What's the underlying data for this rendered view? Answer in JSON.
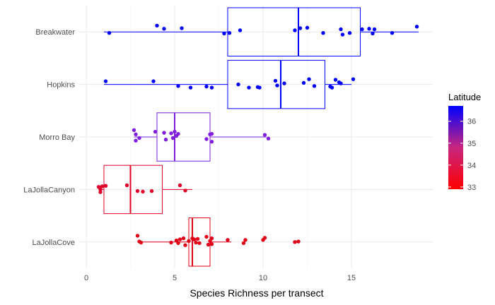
{
  "chart_data": {
    "type": "boxplot",
    "orientation": "horizontal",
    "xlabel": "Species Richness per transect",
    "ylabel": "",
    "xlim": [
      -0.4,
      19.6
    ],
    "x_ticks": [
      0,
      5,
      10,
      15
    ],
    "grid": true,
    "legend": {
      "title": "Latitude",
      "position": "right",
      "type": "colorbar",
      "range": [
        32.9,
        36.7
      ],
      "ticks": [
        33,
        34,
        35,
        36
      ],
      "low_color": "#FF0000",
      "high_color": "#0000FF"
    },
    "categories": [
      "Breakwater",
      "Hopkins",
      "Morro Bay",
      "LaJollaCanyon",
      "LaJollaCove"
    ],
    "series": [
      {
        "category": "Breakwater",
        "latitude": 36.6,
        "color": "#0000FF",
        "whisker_low": 1,
        "q1": 8,
        "median": 12,
        "q3": 15.5,
        "whisker_high": 18.8,
        "points": [
          {
            "x": 1.3,
            "y": -0.02
          },
          {
            "x": 4.0,
            "y": 0.12
          },
          {
            "x": 4.4,
            "y": 0.06
          },
          {
            "x": 5.4,
            "y": 0.07
          },
          {
            "x": 7.8,
            "y": -0.03
          },
          {
            "x": 8.1,
            "y": -0.02
          },
          {
            "x": 8.7,
            "y": 0.03
          },
          {
            "x": 11.8,
            "y": 0.03
          },
          {
            "x": 12.1,
            "y": 0.07
          },
          {
            "x": 12.5,
            "y": 0.08
          },
          {
            "x": 13.4,
            "y": -0.02
          },
          {
            "x": 14.4,
            "y": 0.05
          },
          {
            "x": 14.5,
            "y": -0.05
          },
          {
            "x": 14.9,
            "y": -0.02
          },
          {
            "x": 15.6,
            "y": 0.05
          },
          {
            "x": 16.0,
            "y": 0.06
          },
          {
            "x": 16.2,
            "y": -0.03
          },
          {
            "x": 16.3,
            "y": 0.05
          },
          {
            "x": 17.3,
            "y": -0.02
          },
          {
            "x": 18.7,
            "y": 0.1
          }
        ]
      },
      {
        "category": "Hopkins",
        "latitude": 36.6,
        "color": "#0000FF",
        "whisker_low": 1,
        "q1": 8,
        "median": 11,
        "q3": 13.5,
        "whisker_high": 15,
        "points": [
          {
            "x": 1.1,
            "y": 0.06
          },
          {
            "x": 3.8,
            "y": 0.06
          },
          {
            "x": 5.2,
            "y": -0.03
          },
          {
            "x": 5.9,
            "y": -0.06
          },
          {
            "x": 6.8,
            "y": -0.04
          },
          {
            "x": 7.1,
            "y": -0.06
          },
          {
            "x": 8.6,
            "y": 0.0
          },
          {
            "x": 9.2,
            "y": -0.06
          },
          {
            "x": 9.7,
            "y": -0.05
          },
          {
            "x": 9.8,
            "y": -0.06
          },
          {
            "x": 10.7,
            "y": 0.07
          },
          {
            "x": 10.8,
            "y": -0.02
          },
          {
            "x": 11.2,
            "y": 0.02
          },
          {
            "x": 12.3,
            "y": 0.03
          },
          {
            "x": 12.6,
            "y": 0.1
          },
          {
            "x": 12.9,
            "y": -0.03
          },
          {
            "x": 13.8,
            "y": -0.04
          },
          {
            "x": 13.9,
            "y": -0.06
          },
          {
            "x": 14.1,
            "y": 0.09
          },
          {
            "x": 14.3,
            "y": 0.04
          },
          {
            "x": 14.4,
            "y": 0.02
          },
          {
            "x": 15.1,
            "y": 0.1
          }
        ]
      },
      {
        "category": "Morro Bay",
        "latitude": 35.4,
        "color": "#7F1FDC",
        "whisker_low": 2.7,
        "q1": 4,
        "median": 5,
        "q3": 7,
        "whisker_high": 10.2,
        "points": [
          {
            "x": 2.7,
            "y": 0.13
          },
          {
            "x": 2.8,
            "y": 0.05
          },
          {
            "x": 2.8,
            "y": -0.07
          },
          {
            "x": 3.0,
            "y": -0.02
          },
          {
            "x": 3.9,
            "y": 0.1
          },
          {
            "x": 4.4,
            "y": 0.08
          },
          {
            "x": 4.5,
            "y": -0.05
          },
          {
            "x": 4.8,
            "y": 0.07
          },
          {
            "x": 4.9,
            "y": -0.02
          },
          {
            "x": 5.0,
            "y": 0.1
          },
          {
            "x": 5.1,
            "y": 0.02
          },
          {
            "x": 5.2,
            "y": 0.06
          },
          {
            "x": 6.8,
            "y": -0.04
          },
          {
            "x": 7.0,
            "y": 0.05
          },
          {
            "x": 7.1,
            "y": 0.06
          },
          {
            "x": 7.1,
            "y": -0.09
          },
          {
            "x": 10.1,
            "y": 0.04
          },
          {
            "x": 10.3,
            "y": -0.03
          }
        ]
      },
      {
        "category": "LaJollaCanyon",
        "latitude": 32.9,
        "color": "#E0002A",
        "whisker_low": 0.7,
        "q1": 1,
        "median": 2.5,
        "q3": 4.3,
        "whisker_high": 6,
        "points": [
          {
            "x": 0.7,
            "y": 0.05
          },
          {
            "x": 0.8,
            "y": 0.0
          },
          {
            "x": 0.8,
            "y": -0.05
          },
          {
            "x": 0.9,
            "y": 0.06
          },
          {
            "x": 1.1,
            "y": 0.07
          },
          {
            "x": 2.3,
            "y": 0.08
          },
          {
            "x": 2.9,
            "y": -0.03
          },
          {
            "x": 3.2,
            "y": -0.04
          },
          {
            "x": 3.7,
            "y": -0.03
          },
          {
            "x": 5.3,
            "y": 0.08
          },
          {
            "x": 5.6,
            "y": -0.02
          }
        ]
      },
      {
        "category": "LaJollaCove",
        "latitude": 32.8,
        "color": "#E00018",
        "whisker_low": 2.9,
        "q1": 5.8,
        "median": 6,
        "q3": 7,
        "whisker_high": 8.2,
        "points": [
          {
            "x": 2.9,
            "y": 0.12
          },
          {
            "x": 3.0,
            "y": 0.01
          },
          {
            "x": 3.1,
            "y": -0.01
          },
          {
            "x": 4.8,
            "y": -0.01
          },
          {
            "x": 5.1,
            "y": 0.03
          },
          {
            "x": 5.2,
            "y": -0.02
          },
          {
            "x": 5.3,
            "y": 0.05
          },
          {
            "x": 5.5,
            "y": 0.07
          },
          {
            "x": 5.6,
            "y": -0.06
          },
          {
            "x": 5.8,
            "y": 0.02
          },
          {
            "x": 6.0,
            "y": 0.07
          },
          {
            "x": 6.1,
            "y": 0.05
          },
          {
            "x": 6.2,
            "y": -0.01
          },
          {
            "x": 6.3,
            "y": 0.06
          },
          {
            "x": 6.4,
            "y": -0.02
          },
          {
            "x": 6.8,
            "y": 0.1
          },
          {
            "x": 6.9,
            "y": -0.05
          },
          {
            "x": 7.0,
            "y": 0.02
          },
          {
            "x": 7.1,
            "y": 0.07
          },
          {
            "x": 7.1,
            "y": -0.04
          },
          {
            "x": 8.0,
            "y": 0.04
          },
          {
            "x": 8.9,
            "y": -0.02
          },
          {
            "x": 9.0,
            "y": 0.04
          },
          {
            "x": 10.0,
            "y": 0.04
          },
          {
            "x": 10.1,
            "y": 0.08
          },
          {
            "x": 11.8,
            "y": 0.0
          },
          {
            "x": 12.0,
            "y": 0.01
          }
        ]
      }
    ]
  }
}
